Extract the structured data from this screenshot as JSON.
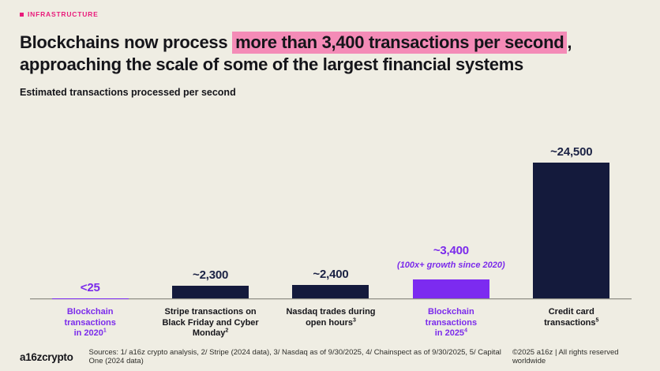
{
  "eyebrow": {
    "label": "INFRASTRUCTURE",
    "color": "#E91B7B"
  },
  "title": {
    "pre": "Blockchains now process ",
    "highlight": "more than 3,400 transactions per second",
    "post": ",",
    "line2": "approaching the scale of some of the largest financial systems",
    "highlight_color": "#F48BB7"
  },
  "subtitle": "Estimated transactions processed per second",
  "chart_data": {
    "type": "bar",
    "title": "Estimated transactions processed per second",
    "xlabel": "",
    "ylabel": "transactions per second",
    "ylim": [
      0,
      24500
    ],
    "grid": false,
    "legend": false,
    "colors": {
      "navy_bar": "#141A3C",
      "purple_bar": "#7C2BF0",
      "navy_text": "#1B2244",
      "purple_text": "#7B2BEB",
      "background": "#EFEDE3",
      "highlight_pink": "#F48BB7",
      "eyebrow_pink": "#E91B7B"
    },
    "bars": [
      {
        "category": "Blockchain transactions in 2020",
        "label_lines": [
          "Blockchain",
          "transactions",
          "in 2020"
        ],
        "footnote": "1",
        "value": 25,
        "value_label": "<25",
        "note": "",
        "theme": "purple"
      },
      {
        "category": "Stripe transactions on Black Friday and Cyber Monday",
        "label_lines": [
          "Stripe transactions on",
          "Black Friday and Cyber",
          "Monday"
        ],
        "footnote": "2",
        "value": 2300,
        "value_label": "~2,300",
        "note": "",
        "theme": "navy"
      },
      {
        "category": "Nasdaq trades during open hours",
        "label_lines": [
          "Nasdaq trades during",
          "open hours"
        ],
        "footnote": "3",
        "value": 2400,
        "value_label": "~2,400",
        "note": "",
        "theme": "navy"
      },
      {
        "category": "Blockchain transactions in 2025",
        "label_lines": [
          "Blockchain",
          "transactions",
          "in 2025"
        ],
        "footnote": "4",
        "value": 3400,
        "value_label": "~3,400",
        "note": "(100x+ growth since 2020)",
        "theme": "purple"
      },
      {
        "category": "Credit card transactions",
        "label_lines": [
          "Credit card",
          "transactions"
        ],
        "footnote": "5",
        "value": 24500,
        "value_label": "~24,500",
        "note": "",
        "theme": "navy"
      }
    ]
  },
  "footer": {
    "logo": "a16zcrypto",
    "sources": "Sources: 1/ a16z crypto analysis, 2/ Stripe (2024 data), 3/ Nasdaq as of 9/30/2025, 4/ Chainspect as of 9/30/2025, 5/ Capital One (2024 data)",
    "copyright": "©2025 a16z | All rights reserved worldwide"
  }
}
